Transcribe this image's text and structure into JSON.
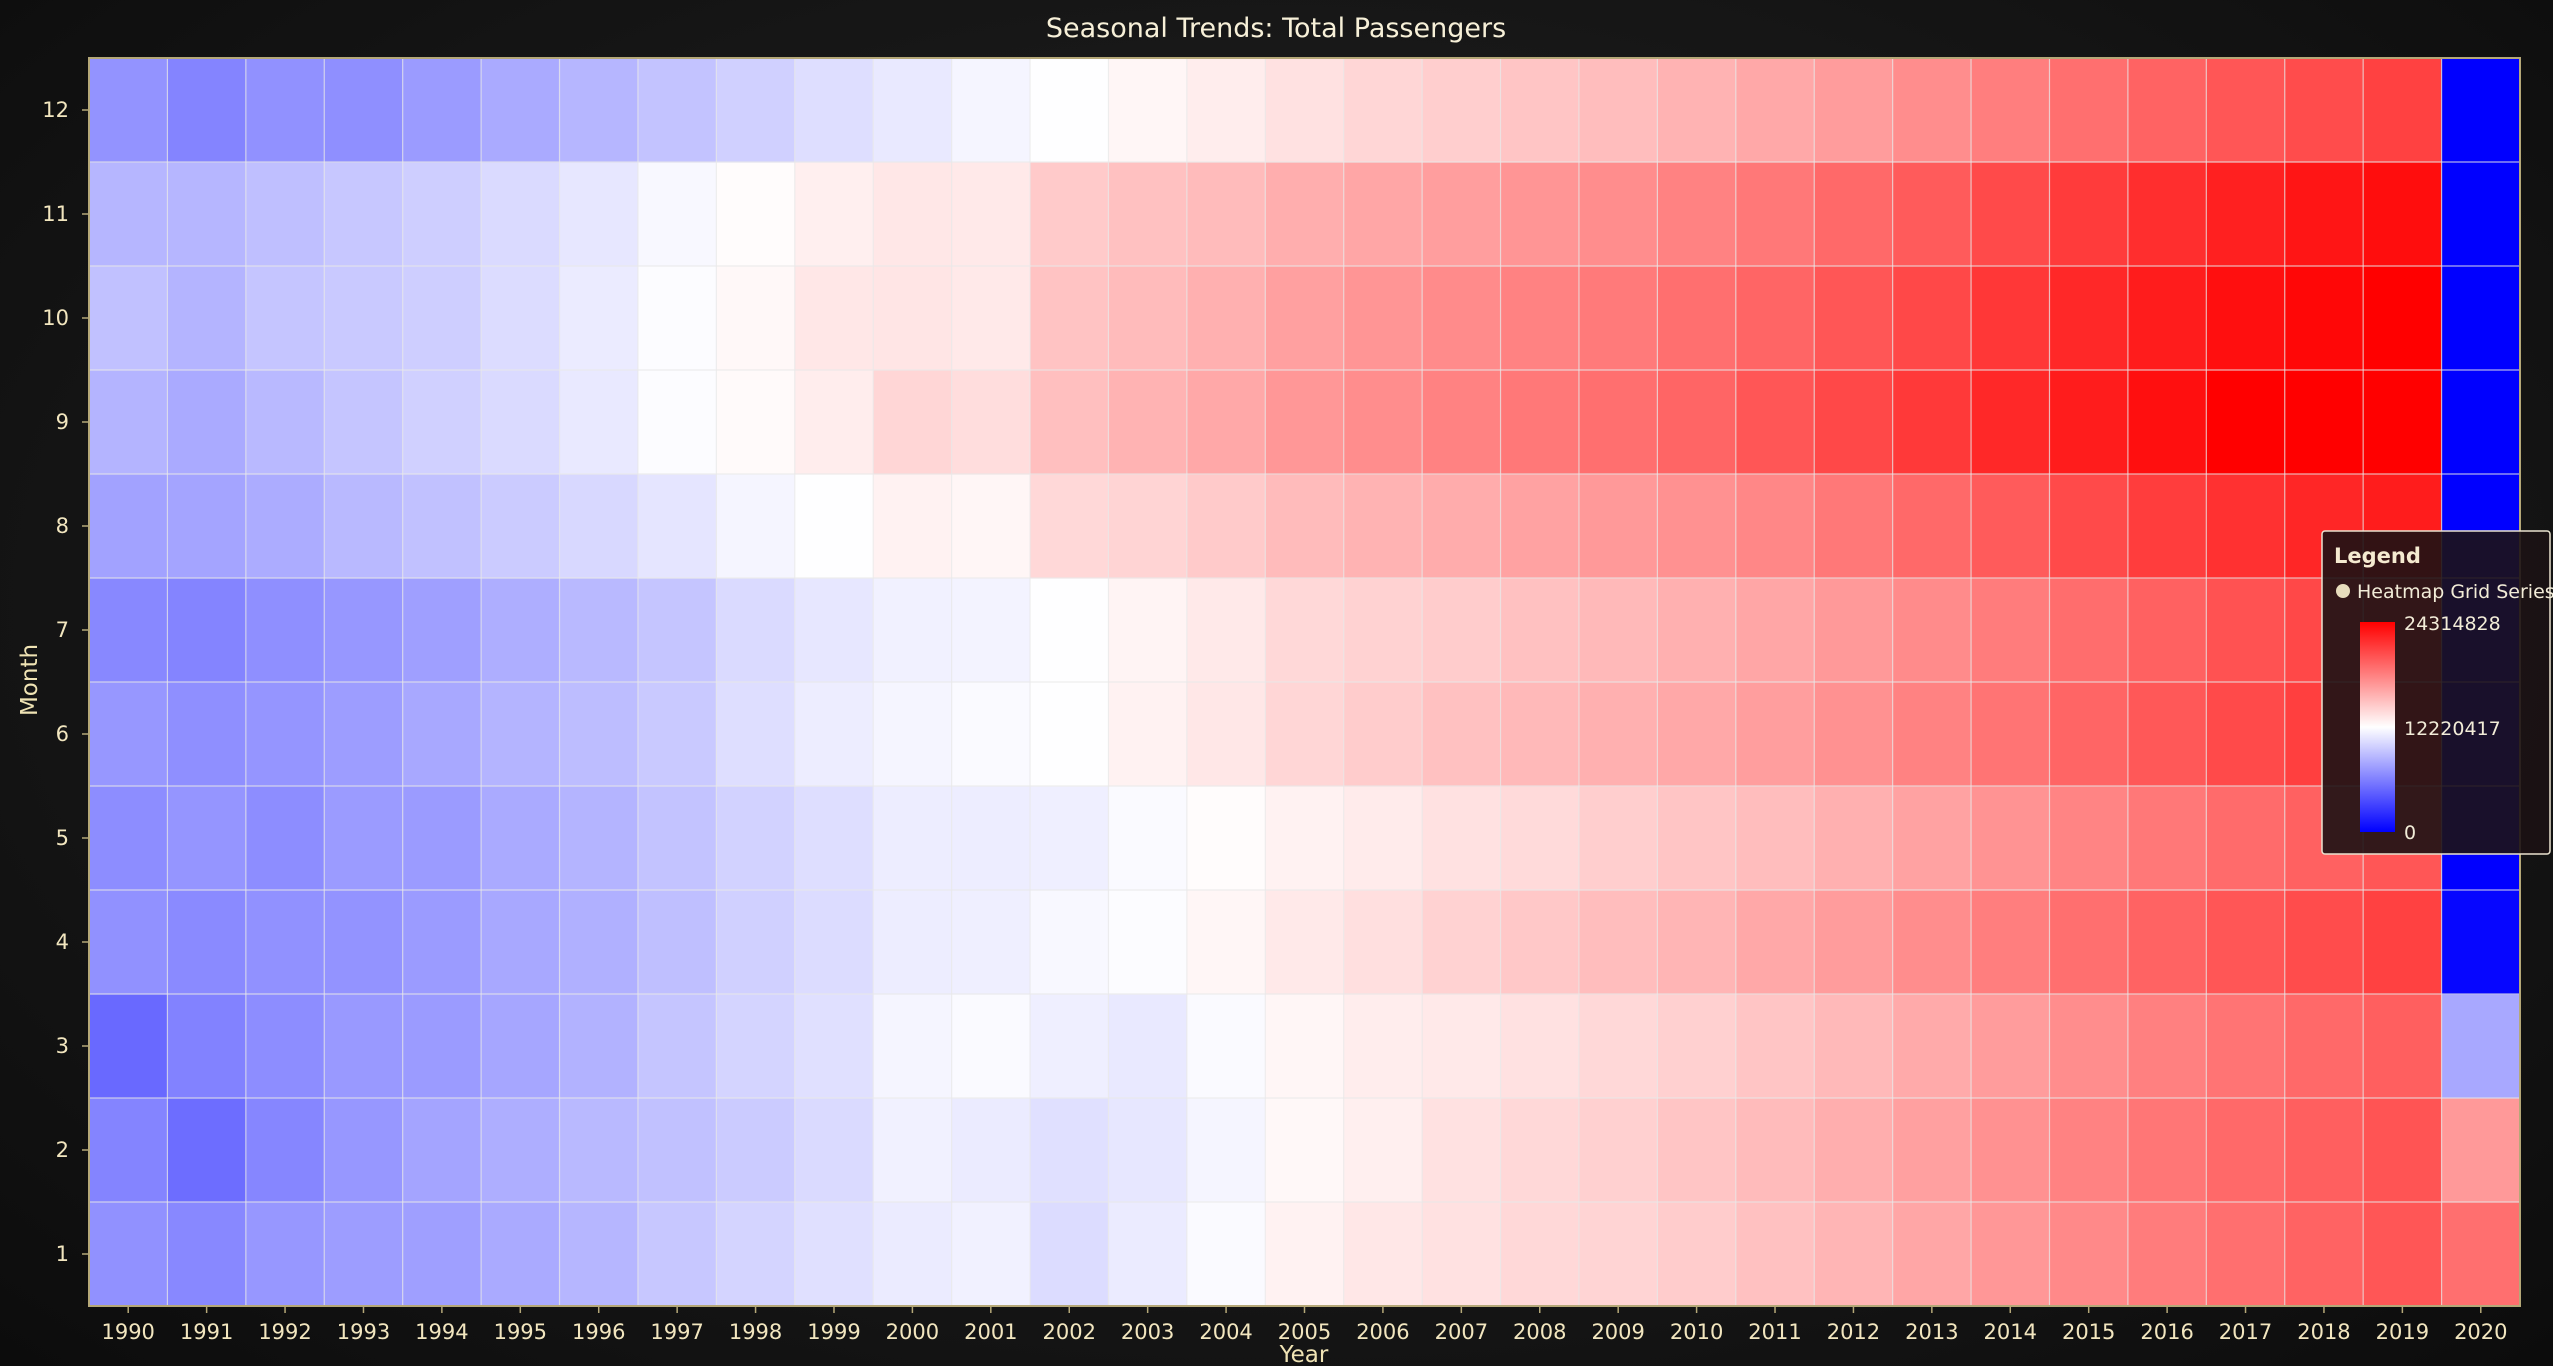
{
  "chart_data": {
    "type": "heatmap",
    "title": "Seasonal Trends: Total Passengers",
    "xlabel": "Year",
    "ylabel": "Month",
    "x": [
      1990,
      1991,
      1992,
      1993,
      1994,
      1995,
      1996,
      1997,
      1998,
      1999,
      2000,
      2001,
      2002,
      2003,
      2004,
      2005,
      2006,
      2007,
      2008,
      2009,
      2010,
      2011,
      2012,
      2013,
      2014,
      2015,
      2016,
      2017,
      2018,
      2019,
      2020
    ],
    "y": [
      1,
      2,
      3,
      4,
      5,
      6,
      7,
      8,
      9,
      10,
      11,
      12
    ],
    "zlim": [
      0,
      24314828
    ],
    "legend": {
      "title": "Legend",
      "series_name": "Heatmap Grid Series",
      "labels": [
        "24314828",
        "12220417",
        "0"
      ],
      "position": "right"
    },
    "colors": {
      "low": "#0000ff",
      "mid": "#ffffff",
      "high": "#ff0000",
      "grid": "#e8e8e8",
      "frame": "#b5a878"
    },
    "values": [
      [
        6900000,
        6300000,
        5000000,
        6900000,
        6700000,
        7200000,
        6500000,
        7700000,
        8600000,
        9200000,
        8700000,
        7000000
      ],
      [
        6500000,
        5200000,
        6200000,
        6600000,
        7100000,
        6800000,
        6300000,
        7800000,
        8100000,
        8600000,
        8700000,
        6300000
      ],
      [
        7200000,
        6400000,
        6700000,
        6900000,
        6700000,
        7100000,
        6800000,
        8200000,
        8800000,
        9400000,
        9100000,
        6900000
      ],
      [
        7500000,
        7200000,
        7300000,
        7000000,
        7400000,
        7500000,
        7200000,
        8800000,
        9400000,
        9600000,
        9500000,
        6800000
      ],
      [
        7600000,
        7800000,
        7400000,
        7400000,
        7400000,
        8000000,
        7600000,
        9200000,
        9900000,
        9800000,
        9800000,
        7400000
      ],
      [
        8100000,
        8300000,
        7900000,
        8000000,
        8100000,
        8600000,
        8300000,
        9700000,
        10400000,
        10500000,
        10400000,
        8100000
      ],
      [
        8700000,
        8800000,
        8500000,
        8400000,
        8600000,
        9000000,
        8800000,
        10300000,
        11100000,
        11200000,
        11000000,
        8700000
      ],
      [
        9500000,
        9200000,
        9400000,
        9100000,
        9300000,
        9600000,
        9400000,
        10900000,
        12000000,
        12000000,
        11800000,
        9300000
      ],
      [
        10100000,
        9700000,
        10100000,
        9900000,
        10000000,
        10600000,
        10400000,
        11700000,
        12400000,
        12500000,
        12300000,
        9900000
      ],
      [
        10700000,
        10400000,
        10700000,
        10500000,
        10600000,
        11300000,
        11000000,
        12100000,
        13000000,
        13300000,
        12900000,
        10600000
      ],
      [
        11200000,
        11500000,
        11700000,
        11300000,
        11300000,
        11700000,
        11500000,
        12800000,
        14100000,
        13400000,
        13300000,
        11100000
      ],
      [
        11500000,
        11200000,
        11900000,
        11400000,
        11300000,
        11900000,
        11600000,
        12600000,
        13800000,
        13200000,
        13200000,
        11700000
      ],
      [
        10500000,
        10700000,
        11400000,
        11800000,
        11400000,
        12100000,
        12100000,
        14000000,
        15200000,
        15000000,
        14700000,
        12100000
      ],
      [
        11200000,
        11000000,
        11100000,
        12000000,
        11900000,
        12800000,
        12700000,
        14200000,
        15800000,
        15400000,
        15100000,
        12600000
      ],
      [
        11900000,
        11700000,
        11900000,
        12600000,
        12300000,
        13300000,
        13200000,
        14700000,
        16300000,
        15900000,
        15400000,
        13000000
      ],
      [
        12800000,
        12500000,
        12600000,
        13200000,
        12800000,
        14100000,
        14000000,
        15400000,
        17100000,
        16700000,
        16000000,
        13600000
      ],
      [
        13300000,
        12900000,
        13000000,
        13700000,
        13100000,
        14600000,
        14300000,
        15800000,
        17600000,
        17200000,
        16400000,
        14100000
      ],
      [
        13600000,
        13600000,
        13200000,
        14300000,
        13600000,
        15100000,
        14600000,
        16100000,
        18100000,
        17700000,
        16800000,
        14500000
      ],
      [
        14000000,
        14000000,
        13600000,
        14800000,
        13900000,
        15500000,
        15100000,
        16600000,
        18600000,
        18100000,
        17200000,
        14900000
      ],
      [
        14200000,
        14400000,
        14000000,
        15300000,
        14500000,
        15900000,
        15500000,
        17000000,
        19000000,
        18500000,
        17600000,
        15300000
      ],
      [
        14600000,
        14900000,
        14400000,
        15700000,
        14900000,
        16300000,
        15900000,
        17400000,
        19500000,
        19000000,
        18100000,
        15800000
      ],
      [
        15100000,
        15400000,
        14900000,
        16300000,
        15300000,
        16800000,
        16400000,
        17900000,
        20200000,
        19500000,
        18600000,
        16300000
      ],
      [
        15700000,
        16000000,
        15500000,
        16900000,
        15900000,
        17400000,
        17000000,
        18600000,
        20900000,
        20200000,
        19300000,
        16900000
      ],
      [
        16400000,
        16700000,
        16200000,
        17600000,
        16600000,
        18100000,
        17700000,
        19300000,
        21600000,
        20900000,
        20000000,
        17600000
      ],
      [
        17100000,
        17400000,
        16900000,
        18300000,
        17300000,
        18800000,
        18400000,
        20000000,
        22400000,
        21700000,
        20800000,
        18300000
      ],
      [
        17800000,
        18100000,
        17600000,
        19000000,
        18000000,
        19500000,
        19100000,
        20800000,
        23000000,
        22400000,
        21500000,
        19000000
      ],
      [
        18400000,
        18700000,
        18200000,
        19600000,
        18600000,
        20100000,
        19700000,
        21400000,
        23600000,
        23000000,
        22100000,
        19600000
      ],
      [
        19000000,
        19300000,
        18800000,
        20200000,
        19200000,
        20800000,
        20400000,
        22000000,
        24300000,
        23600000,
        22800000,
        20200000
      ],
      [
        19600000,
        19800000,
        19300000,
        20700000,
        19700000,
        21300000,
        20900000,
        22500000,
        24600000,
        24000000,
        23300000,
        20700000
      ],
      [
        20200000,
        20300000,
        19800000,
        21200000,
        20200000,
        21800000,
        21400000,
        23000000,
        25000000,
        24400000,
        23700000,
        21200000
      ],
      [
        19000000,
        17000000,
        8000000,
        300000,
        0,
        0,
        0,
        0,
        0,
        0,
        0,
        0
      ]
    ]
  }
}
